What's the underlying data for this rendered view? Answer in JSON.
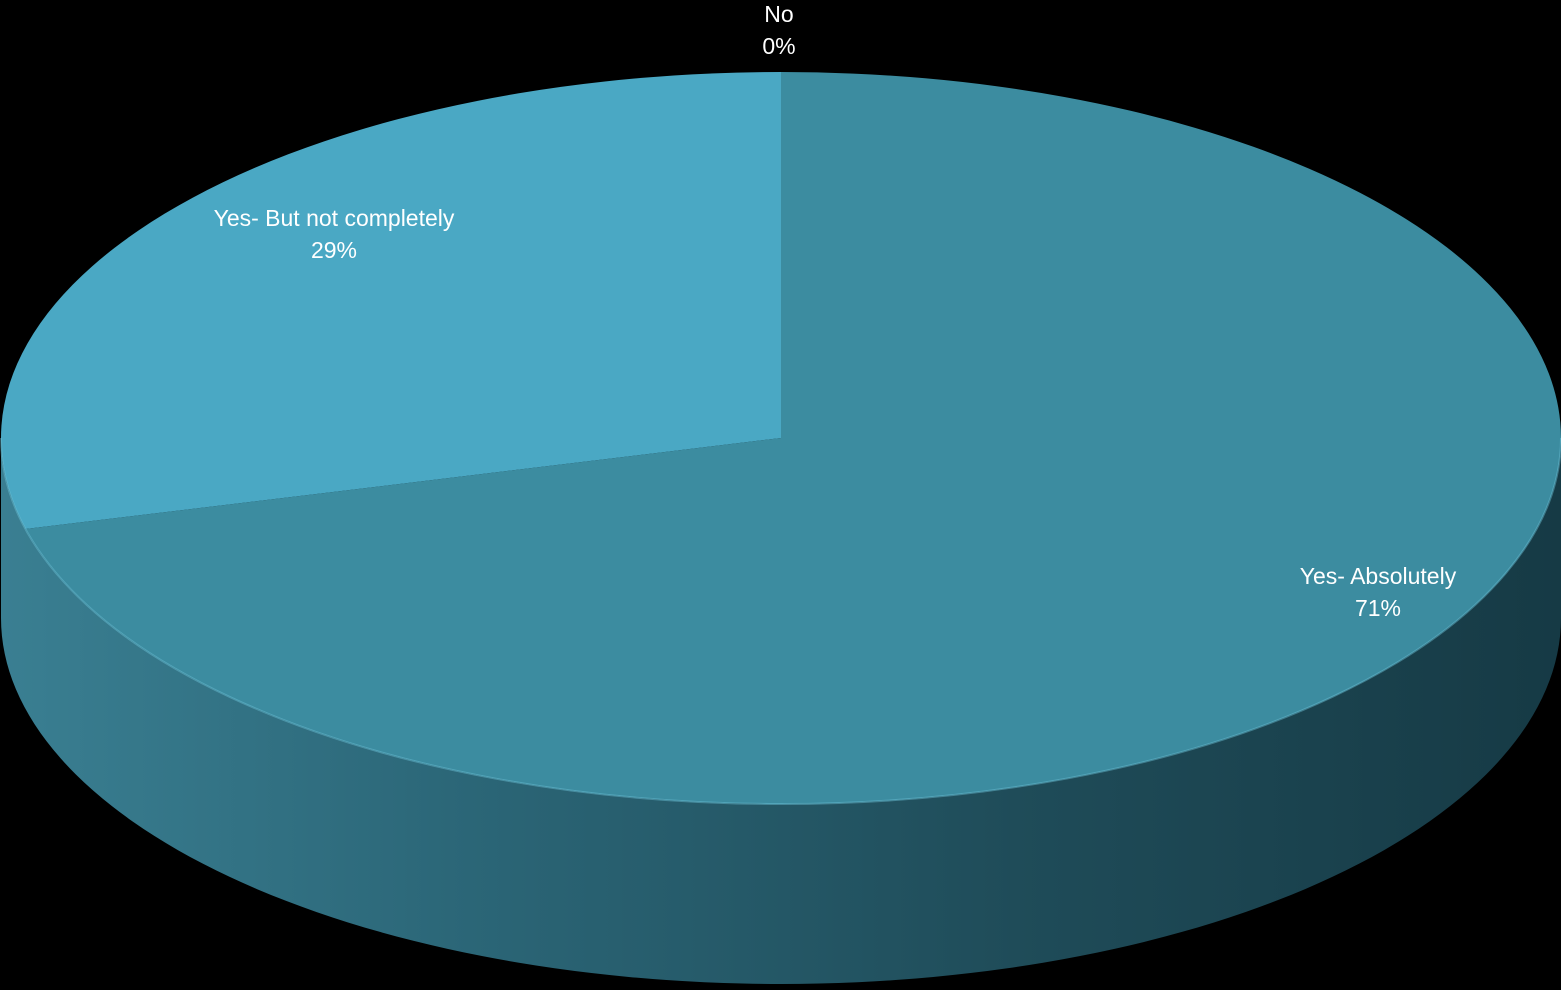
{
  "chart_data": {
    "type": "pie",
    "three_d": true,
    "background": "#000000",
    "label_color": "#ffffff",
    "slices": [
      {
        "label": "Yes- Absolutely",
        "value": 71,
        "value_label": "71%",
        "color": "#3c8ca0"
      },
      {
        "label": "Yes- But not completely",
        "value": 29,
        "value_label": "29%",
        "color": "#4aa8c4"
      },
      {
        "label": "No",
        "value": 0,
        "value_label": "0%",
        "color": "#3f9bb8"
      }
    ]
  }
}
